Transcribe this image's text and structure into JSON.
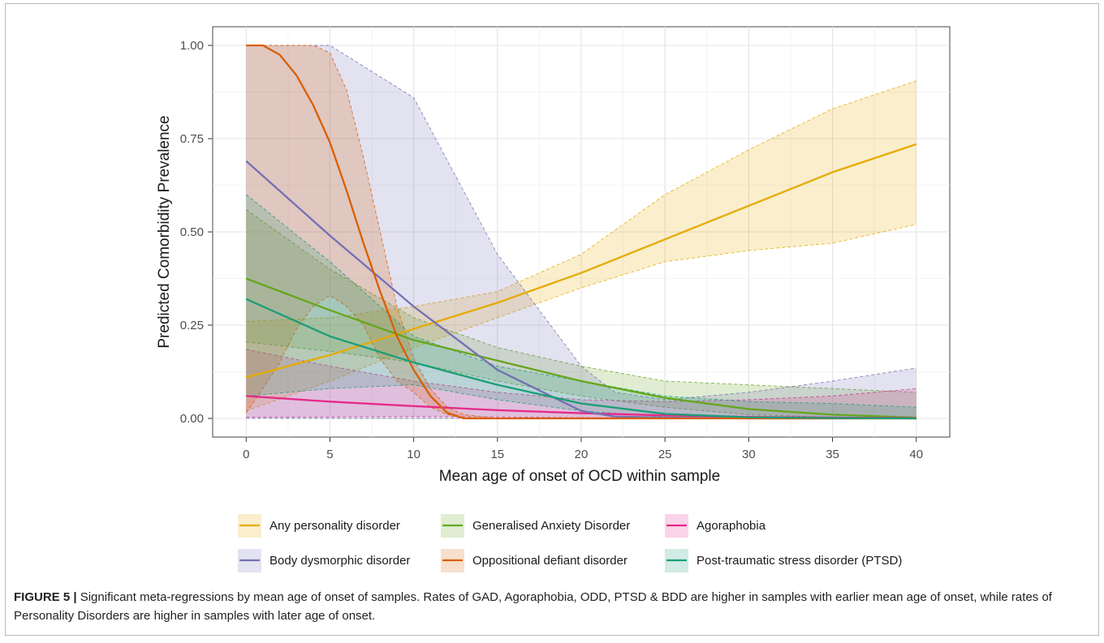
{
  "chart_data": {
    "type": "line",
    "title": "",
    "xlabel": "Mean age of onset of OCD within sample",
    "ylabel": "Predicted Comorbidity Prevalence",
    "xlim": [
      -2,
      42
    ],
    "ylim": [
      -0.05,
      1.05
    ],
    "x_ticks": [
      0,
      5,
      10,
      15,
      20,
      25,
      30,
      35,
      40
    ],
    "x_tick_labels": [
      "0",
      "5",
      "10",
      "15",
      "20",
      "25",
      "30",
      "35",
      "40"
    ],
    "y_ticks": [
      0,
      0.25,
      0.5,
      0.75,
      1
    ],
    "y_tick_labels": [
      "0.00",
      "0.25",
      "0.50",
      "0.75",
      "1.00"
    ],
    "grid": true,
    "legend_position": "bottom",
    "series": [
      {
        "name": "Any personality disorder",
        "color": "#e6ab02",
        "x": [
          0,
          5,
          10,
          15,
          20,
          25,
          30,
          35,
          40
        ],
        "values": [
          0.11,
          0.17,
          0.24,
          0.31,
          0.39,
          0.48,
          0.57,
          0.66,
          0.735
        ],
        "lower": [
          0.02,
          0.1,
          0.19,
          0.27,
          0.35,
          0.42,
          0.45,
          0.47,
          0.52
        ],
        "upper": [
          0.26,
          0.27,
          0.3,
          0.34,
          0.44,
          0.6,
          0.72,
          0.83,
          0.905
        ]
      },
      {
        "name": "Generalised Anxiety Disorder",
        "color": "#66a61e",
        "x": [
          0,
          5,
          10,
          15,
          20,
          25,
          30,
          35,
          40
        ],
        "values": [
          0.375,
          0.29,
          0.21,
          0.155,
          0.1,
          0.055,
          0.025,
          0.01,
          0.002
        ],
        "lower": [
          0.205,
          0.18,
          0.15,
          0.1,
          0.06,
          0.03,
          0.01,
          0.003,
          0.0
        ],
        "upper": [
          0.56,
          0.4,
          0.27,
          0.19,
          0.14,
          0.1,
          0.09,
          0.08,
          0.07
        ]
      },
      {
        "name": "Agoraphobia",
        "color": "#e7298a",
        "x": [
          0,
          5,
          10,
          15,
          20,
          25,
          30,
          35,
          40
        ],
        "values": [
          0.06,
          0.045,
          0.033,
          0.022,
          0.014,
          0.008,
          0.004,
          0.002,
          0.001
        ],
        "lower": [
          0.003,
          0.004,
          0.005,
          0.004,
          0.002,
          0.001,
          0.0,
          0.0,
          0.0
        ],
        "upper": [
          0.185,
          0.14,
          0.1,
          0.07,
          0.05,
          0.045,
          0.05,
          0.06,
          0.08
        ]
      },
      {
        "name": "Body dysmorphic disorder",
        "color": "#7570b3",
        "x": [
          0,
          5,
          10,
          15,
          20,
          22,
          25,
          30,
          35,
          40
        ],
        "values": [
          0.69,
          0.49,
          0.3,
          0.13,
          0.02,
          0.005,
          0.002,
          0.0,
          0.0,
          0.0
        ],
        "lower": [
          0.0,
          0.0,
          0.0,
          0.0,
          0.0,
          0.0,
          0.0,
          0.0,
          0.0,
          0.0
        ],
        "upper": [
          1.0,
          1.0,
          0.86,
          0.44,
          0.14,
          0.07,
          0.05,
          0.07,
          0.1,
          0.135
        ]
      },
      {
        "name": "Oppositional defiant disorder",
        "color": "#d95f02",
        "x": [
          0,
          1,
          2,
          3,
          4,
          5,
          6,
          7,
          8,
          9,
          10,
          11,
          12,
          13,
          15,
          20,
          25,
          30,
          35,
          40
        ],
        "values": [
          1.0,
          1.0,
          0.975,
          0.92,
          0.84,
          0.74,
          0.61,
          0.47,
          0.34,
          0.22,
          0.13,
          0.06,
          0.015,
          0.0,
          0.0,
          0.0,
          0.0,
          0.0,
          0.0,
          0.0
        ],
        "lower": [
          0.015,
          0.08,
          0.15,
          0.24,
          0.3,
          0.33,
          0.3,
          0.25,
          0.16,
          0.1,
          0.07,
          0.03,
          0.01,
          0.0,
          0.0,
          0.0,
          0.0,
          0.0,
          0.0,
          0.0
        ],
        "upper": [
          1.0,
          1.0,
          1.0,
          1.0,
          1.0,
          0.98,
          0.88,
          0.7,
          0.5,
          0.3,
          0.16,
          0.08,
          0.03,
          0.01,
          0.0,
          0.0,
          0.0,
          0.0,
          0.0,
          0.0
        ]
      },
      {
        "name": "Post-traumatic stress disorder (PTSD)",
        "color": "#1b9e77",
        "x": [
          0,
          5,
          10,
          15,
          20,
          25,
          30,
          35,
          40
        ],
        "values": [
          0.32,
          0.22,
          0.15,
          0.09,
          0.04,
          0.012,
          0.003,
          0.001,
          0.0
        ],
        "lower": [
          0.06,
          0.08,
          0.09,
          0.05,
          0.02,
          0.004,
          0.001,
          0.0,
          0.0
        ],
        "upper": [
          0.6,
          0.42,
          0.22,
          0.14,
          0.1,
          0.06,
          0.045,
          0.04,
          0.03
        ]
      }
    ]
  },
  "caption": {
    "label": "FIGURE 5 |",
    "text": " Significant meta-regressions by mean age of onset of samples. Rates of GAD, Agoraphobia, ODD, PTSD & BDD are higher in samples with earlier mean age of onset, while rates of Personality Disorders are higher in samples with later age of onset."
  }
}
